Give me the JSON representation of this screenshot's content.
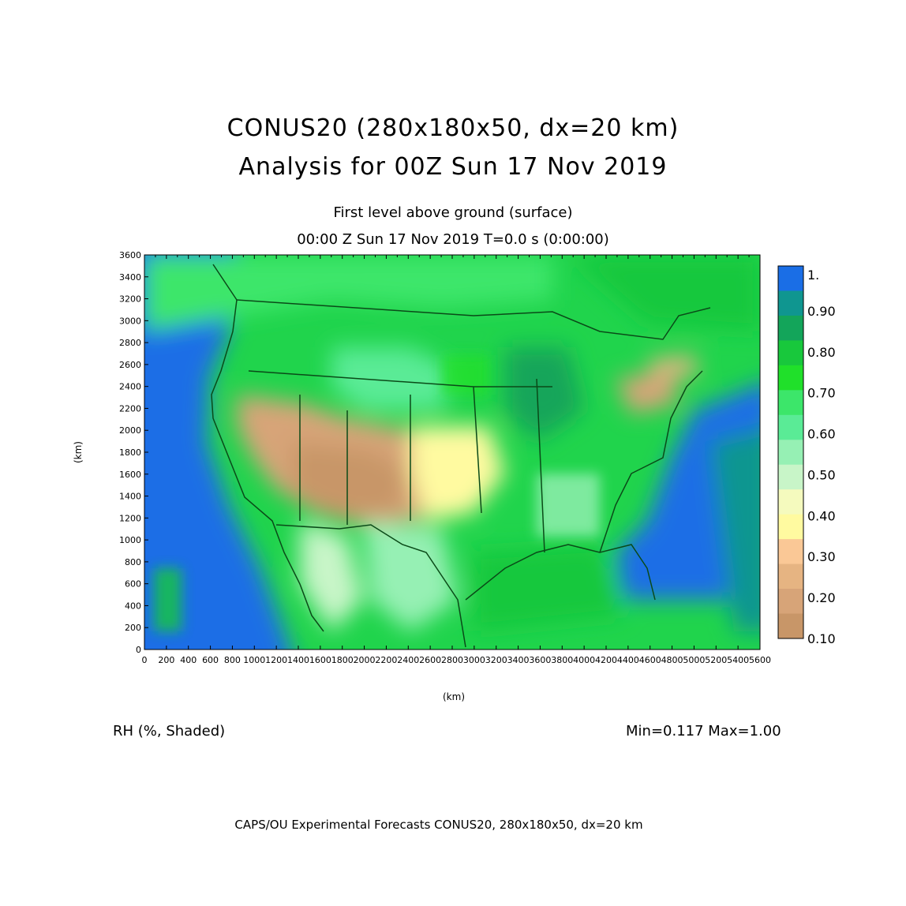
{
  "header": {
    "title_line1": "CONUS20 (280x180x50, dx=20 km)",
    "title_line2": "Analysis for 00Z Sun 17 Nov 2019",
    "level": "First level above ground (surface)",
    "time": "00:00 Z Sun 17 Nov 2019    T=0.0 s (0:00:00)"
  },
  "axes": {
    "x_label": "(km)",
    "y_label": "(km)",
    "x_ticks": [
      "0",
      "200",
      "400",
      "600",
      "800",
      "1000",
      "1200",
      "1400",
      "1600",
      "1800",
      "2000",
      "2200",
      "2400",
      "2600",
      "2800",
      "3000",
      "3200",
      "3400",
      "3600",
      "3800",
      "4000",
      "4200",
      "4400",
      "4600",
      "4800",
      "5000",
      "5200",
      "5400",
      "5600"
    ],
    "y_ticks": [
      "0",
      "200",
      "400",
      "600",
      "800",
      "1000",
      "1200",
      "1400",
      "1600",
      "1800",
      "2000",
      "2200",
      "2400",
      "2600",
      "2800",
      "3000",
      "3200",
      "3400",
      "3600"
    ],
    "x_range": [
      0,
      5600
    ],
    "y_range": [
      0,
      3600
    ]
  },
  "legend": {
    "labels": [
      "1.",
      "0.90",
      "0.80",
      "0.70",
      "0.60",
      "0.50",
      "0.40",
      "0.30",
      "0.20",
      "0.10"
    ],
    "colors": [
      "#1a6ee6",
      "#0f9690",
      "#13a55a",
      "#18c83c",
      "#20e02a",
      "#3ce66a",
      "#5aeb96",
      "#96f0b4",
      "#c8f5c8",
      "#f5fabe",
      "#fffaa0",
      "#fac896",
      "#e6b482",
      "#d7a478",
      "#c89668"
    ]
  },
  "footer": {
    "variable": "RH (%, Shaded)",
    "minmax": "Min=0.117  Max=1.00",
    "credit": "CAPS/OU Experimental Forecasts  CONUS20, 280x180x50, dx=20 km"
  }
}
